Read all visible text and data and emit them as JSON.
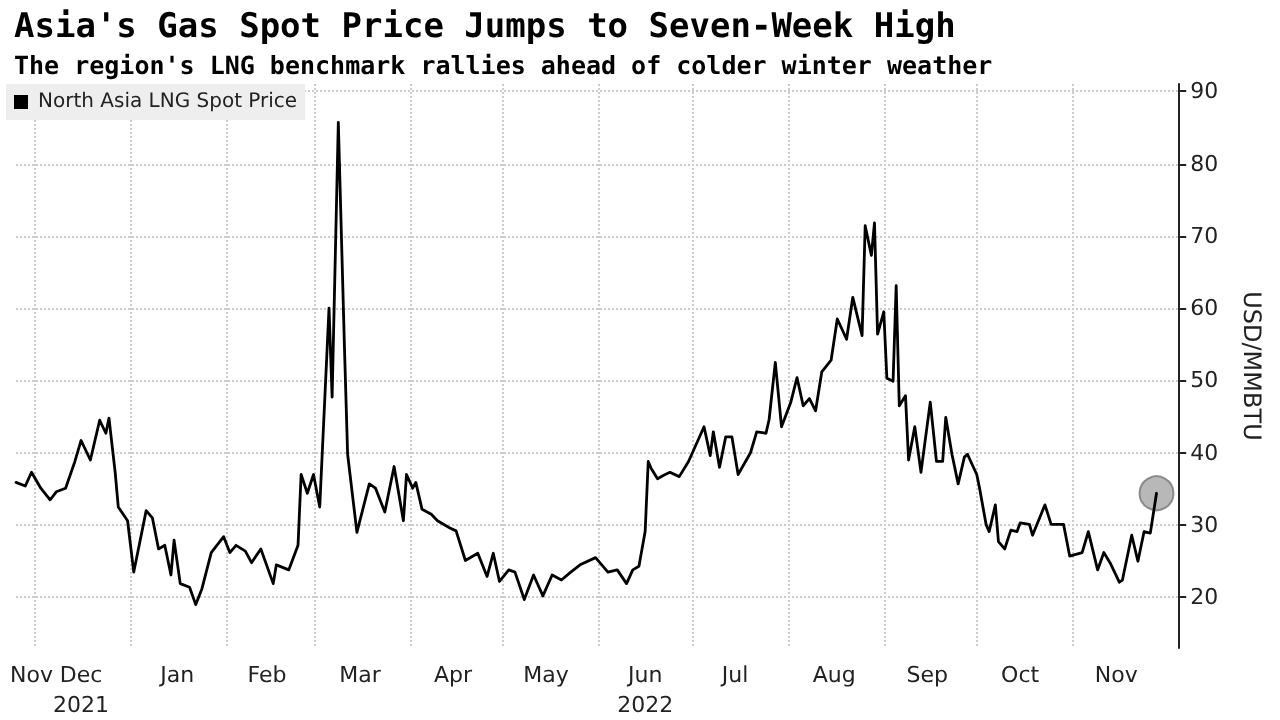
{
  "chart_data": {
    "type": "line",
    "title": "Asia's Gas Spot Price Jumps to Seven-Week High",
    "subtitle": "The region's LNG benchmark rallies ahead of colder winter weather",
    "ylabel": "USD/MMBTU",
    "x": [
      "2021-11-25",
      "2021-11-28",
      "2021-11-30",
      "2021-12-03",
      "2021-12-06",
      "2021-12-08",
      "2021-12-11",
      "2021-12-14",
      "2021-12-16",
      "2021-12-19",
      "2021-12-22",
      "2021-12-24",
      "2021-12-25",
      "2021-12-27",
      "2021-12-28",
      "2021-12-31",
      "2022-01-02",
      "2022-01-06",
      "2022-01-08",
      "2022-01-10",
      "2022-01-12",
      "2022-01-14",
      "2022-01-15",
      "2022-01-17",
      "2022-01-20",
      "2022-01-22",
      "2022-01-24",
      "2022-01-27",
      "2022-01-31",
      "2022-02-02",
      "2022-02-04",
      "2022-02-07",
      "2022-02-09",
      "2022-02-12",
      "2022-02-16",
      "2022-02-17",
      "2022-02-21",
      "2022-02-24",
      "2022-02-25",
      "2022-02-27",
      "2022-03-01",
      "2022-03-03",
      "2022-03-06",
      "2022-03-07",
      "2022-03-09",
      "2022-03-11",
      "2022-03-12",
      "2022-03-15",
      "2022-03-19",
      "2022-03-21",
      "2022-03-24",
      "2022-03-27",
      "2022-03-30",
      "2022-03-31",
      "2022-04-02",
      "2022-04-03",
      "2022-04-05",
      "2022-04-08",
      "2022-04-10",
      "2022-04-14",
      "2022-04-16",
      "2022-04-19",
      "2022-04-23",
      "2022-04-26",
      "2022-04-28",
      "2022-04-30",
      "2022-05-03",
      "2022-05-05",
      "2022-05-08",
      "2022-05-11",
      "2022-05-14",
      "2022-05-17",
      "2022-05-20",
      "2022-05-23",
      "2022-05-26",
      "2022-05-31",
      "2022-06-04",
      "2022-06-07",
      "2022-06-10",
      "2022-06-12",
      "2022-06-14",
      "2022-06-16",
      "2022-06-17",
      "2022-06-18",
      "2022-06-20",
      "2022-06-22",
      "2022-06-24",
      "2022-06-27",
      "2022-06-30",
      "2022-07-05",
      "2022-07-07",
      "2022-07-08",
      "2022-07-10",
      "2022-07-12",
      "2022-07-14",
      "2022-07-16",
      "2022-07-20",
      "2022-07-22",
      "2022-07-25",
      "2022-07-26",
      "2022-07-28",
      "2022-07-30",
      "2022-08-02",
      "2022-08-04",
      "2022-08-06",
      "2022-08-08",
      "2022-08-10",
      "2022-08-12",
      "2022-08-15",
      "2022-08-17",
      "2022-08-20",
      "2022-08-22",
      "2022-08-25",
      "2022-08-26",
      "2022-08-28",
      "2022-08-29",
      "2022-08-30",
      "2022-09-01",
      "2022-09-02",
      "2022-09-04",
      "2022-09-05",
      "2022-09-06",
      "2022-09-08",
      "2022-09-09",
      "2022-09-11",
      "2022-09-13",
      "2022-09-16",
      "2022-09-18",
      "2022-09-20",
      "2022-09-21",
      "2022-09-23",
      "2022-09-25",
      "2022-09-27",
      "2022-09-28",
      "2022-10-01",
      "2022-10-02",
      "2022-10-04",
      "2022-10-05",
      "2022-10-07",
      "2022-10-08",
      "2022-10-10",
      "2022-10-12",
      "2022-10-14",
      "2022-10-15",
      "2022-10-18",
      "2022-10-19",
      "2022-10-23",
      "2022-10-25",
      "2022-10-29",
      "2022-10-31",
      "2022-11-04",
      "2022-11-06",
      "2022-11-09",
      "2022-11-11",
      "2022-11-13",
      "2022-11-16",
      "2022-11-17",
      "2022-11-20",
      "2022-11-22",
      "2022-11-24",
      "2022-11-26",
      "2022-11-28"
    ],
    "series": [
      {
        "name": "North Asia LNG Spot Price",
        "color": "#000000",
        "marker": "none",
        "values": [
          35.9,
          35.4,
          37.3,
          35.1,
          33.5,
          34.6,
          35.1,
          38.8,
          41.7,
          39,
          44.5,
          42.7,
          44.8,
          37.3,
          32.5,
          30.6,
          23.5,
          32,
          31,
          26.7,
          27.2,
          23.1,
          27.9,
          21.9,
          21.4,
          19,
          21.2,
          26.2,
          28.4,
          26.2,
          27.2,
          26.4,
          24.8,
          26.7,
          21.9,
          24.5,
          23.8,
          27.2,
          37,
          34.4,
          37,
          32.5,
          60,
          47.7,
          85.7,
          54.3,
          39.8,
          29,
          35.7,
          35.1,
          31.8,
          38.1,
          30.6,
          37,
          35.1,
          35.9,
          32.2,
          31.5,
          30.6,
          29.6,
          29.2,
          25.1,
          26.1,
          22.9,
          26.1,
          22.2,
          23.8,
          23.5,
          19.7,
          23.1,
          20.2,
          23.1,
          22.4,
          23.5,
          24.5,
          25.5,
          23.5,
          23.8,
          21.9,
          23.8,
          24.3,
          29.1,
          38.8,
          37.8,
          36.4,
          36.9,
          37.3,
          36.7,
          38.8,
          43.6,
          39.6,
          42.9,
          38,
          42.2,
          42.2,
          37,
          40,
          42.9,
          42.7,
          44.6,
          52.5,
          43.6,
          47,
          50.4,
          46.5,
          47.5,
          45.8,
          51.2,
          52.8,
          58.5,
          55.7,
          61.5,
          56.2,
          71.4,
          67.3,
          71.8,
          56.4,
          59.5,
          50.3,
          49.9,
          63.1,
          46.5,
          47.9,
          39,
          43.6,
          37.3,
          47,
          38.8,
          38.8,
          44.9,
          39.8,
          35.7,
          39.4,
          39.8,
          37,
          34.9,
          30.1,
          29.1,
          32.8,
          27.7,
          26.7,
          29.3,
          29.1,
          30.3,
          30.1,
          28.6,
          32.8,
          30.1,
          30.1,
          25.7,
          26.2,
          29.1,
          23.8,
          26.2,
          24.8,
          22.1,
          22.4,
          28.6,
          25,
          29.1,
          28.9,
          34.4
        ]
      },
      {
        "type": "scatter",
        "color": "#a6a6a6",
        "marker": "circle",
        "x": [
          "2022-11-28"
        ],
        "values": [
          34.4
        ]
      }
    ],
    "xlim": [
      "2021-11-25",
      "2022-12-05"
    ],
    "xticks": [
      {
        "value": "2021-11-30",
        "label": "Nov"
      },
      {
        "value": "2021-12-01",
        "label": null
      },
      {
        "value": "2021-12-16",
        "label": "Dec\n2021"
      },
      {
        "value": "2022-01-01",
        "label": null
      },
      {
        "value": "2022-01-16",
        "label": "Jan"
      },
      {
        "value": "2022-02-01",
        "label": null
      },
      {
        "value": "2022-02-14",
        "label": "Feb"
      },
      {
        "value": "2022-03-01",
        "label": null
      },
      {
        "value": "2022-03-16",
        "label": "Mar"
      },
      {
        "value": "2022-04-01",
        "label": null
      },
      {
        "value": "2022-04-15",
        "label": "Apr"
      },
      {
        "value": "2022-05-01",
        "label": null
      },
      {
        "value": "2022-05-15",
        "label": "May"
      },
      {
        "value": "2022-06-01",
        "label": null
      },
      {
        "value": "2022-06-16",
        "label": "Jun\n2022"
      },
      {
        "value": "2022-07-01",
        "label": null
      },
      {
        "value": "2022-07-15",
        "label": "Jul"
      },
      {
        "value": "2022-08-01",
        "label": null
      },
      {
        "value": "2022-08-16",
        "label": "Aug"
      },
      {
        "value": "2022-09-01",
        "label": null
      },
      {
        "value": "2022-09-15",
        "label": "Sep"
      },
      {
        "value": "2022-10-01",
        "label": null
      },
      {
        "value": "2022-10-15",
        "label": "Oct"
      },
      {
        "value": "2022-11-01",
        "label": null
      },
      {
        "value": "2022-11-15",
        "label": "Nov"
      }
    ],
    "ylim": [
      13,
      91
    ],
    "yticks": [
      20,
      30,
      40,
      50,
      60,
      70,
      80,
      90
    ],
    "grid": true,
    "legend": "top left"
  }
}
